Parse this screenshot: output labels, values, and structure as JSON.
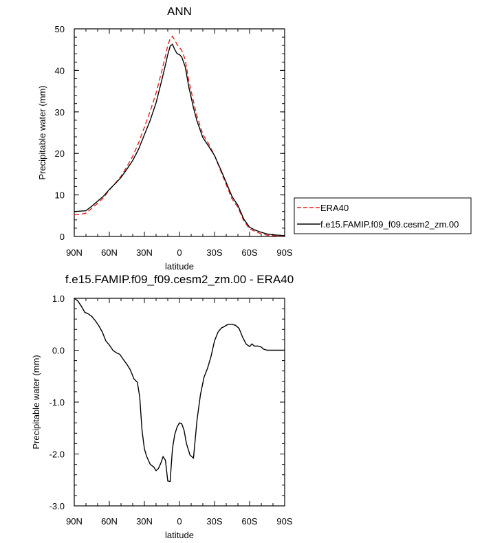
{
  "chart_data": [
    {
      "type": "line",
      "title": "ANN",
      "xlabel": "latitude",
      "ylabel": "Precipitable water (mm)",
      "x_direction": "north-to-south",
      "xlim": [
        90,
        -90
      ],
      "ylim": [
        0,
        50
      ],
      "xticks": [
        {
          "value": 90,
          "label": "90N"
        },
        {
          "value": 60,
          "label": "60N"
        },
        {
          "value": 30,
          "label": "30N"
        },
        {
          "value": 0,
          "label": "0"
        },
        {
          "value": -30,
          "label": "30S"
        },
        {
          "value": -60,
          "label": "60S"
        },
        {
          "value": -90,
          "label": "90S"
        }
      ],
      "yticks": [
        {
          "value": 0,
          "label": "0"
        },
        {
          "value": 10,
          "label": "10"
        },
        {
          "value": 20,
          "label": "20"
        },
        {
          "value": 30,
          "label": "30"
        },
        {
          "value": 40,
          "label": "40"
        },
        {
          "value": 50,
          "label": "50"
        }
      ],
      "grid": false,
      "legend_position": "right",
      "series": [
        {
          "name": "ERA40",
          "color": "#e8201a",
          "dash": "dashed",
          "x": [
            90,
            85,
            80,
            75,
            70,
            65,
            60,
            55,
            50,
            45,
            40,
            35,
            30,
            25,
            20,
            15,
            12,
            10,
            8,
            6,
            4,
            2,
            0,
            -2,
            -5,
            -8,
            -12,
            -15,
            -20,
            -25,
            -30,
            -35,
            -40,
            -45,
            -50,
            -55,
            -60,
            -65,
            -70,
            -75,
            -80,
            -85,
            -90
          ],
          "y": [
            5.2,
            5.3,
            5.6,
            6.8,
            8.0,
            9.3,
            11.2,
            12.8,
            14.5,
            16.8,
            19.3,
            22.5,
            26.3,
            30.2,
            34.5,
            40.0,
            43.5,
            46.0,
            47.6,
            48.2,
            47.3,
            46.2,
            45.5,
            44.8,
            42.5,
            37.5,
            32.5,
            29.0,
            24.6,
            22.3,
            19.5,
            16.0,
            12.5,
            9.0,
            7.0,
            3.8,
            1.8,
            1.2,
            0.6,
            0.3,
            0.2,
            0.1,
            0.1
          ]
        },
        {
          "name": "f.e15.FAMIP.f09_f09.cesm2_zm.00",
          "color": "#000000",
          "dash": "solid",
          "x": [
            90,
            85,
            80,
            75,
            70,
            65,
            60,
            55,
            50,
            45,
            40,
            35,
            30,
            25,
            20,
            15,
            12,
            10,
            8,
            6,
            4,
            2,
            0,
            -2,
            -5,
            -8,
            -12,
            -15,
            -20,
            -25,
            -30,
            -35,
            -40,
            -45,
            -50,
            -55,
            -60,
            -65,
            -70,
            -75,
            -80,
            -85,
            -90
          ],
          "y": [
            6.0,
            6.1,
            6.2,
            7.3,
            8.5,
            9.7,
            11.3,
            12.7,
            14.2,
            16.2,
            18.3,
            21.0,
            24.5,
            28.0,
            32.2,
            37.8,
            41.3,
            43.8,
            45.8,
            46.3,
            45.0,
            44.0,
            43.8,
            43.2,
            40.8,
            36.0,
            31.0,
            27.8,
            23.8,
            21.7,
            19.5,
            16.3,
            13.0,
            9.6,
            7.5,
            4.2,
            2.2,
            1.5,
            1.0,
            0.6,
            0.4,
            0.3,
            0.2
          ]
        }
      ]
    },
    {
      "type": "line",
      "title": "f.e15.FAMIP.f09_f09.cesm2_zm.00 - ERA40",
      "xlabel": "latitude",
      "ylabel": "Precipitable water (mm)",
      "x_direction": "north-to-south",
      "xlim": [
        90,
        -90
      ],
      "ylim": [
        -3.0,
        1.0
      ],
      "xticks": [
        {
          "value": 90,
          "label": "90N"
        },
        {
          "value": 60,
          "label": "60N"
        },
        {
          "value": 30,
          "label": "30N"
        },
        {
          "value": 0,
          "label": "0"
        },
        {
          "value": -30,
          "label": "30S"
        },
        {
          "value": -60,
          "label": "60S"
        },
        {
          "value": -90,
          "label": "90S"
        }
      ],
      "yticks": [
        {
          "value": 1.0,
          "label": "1.0"
        },
        {
          "value": 0.0,
          "label": "0.0"
        },
        {
          "value": -1.0,
          "label": "-1.0"
        },
        {
          "value": -2.0,
          "label": "-2.0"
        },
        {
          "value": -3.0,
          "label": "-3.0"
        }
      ],
      "grid": false,
      "series": [
        {
          "color": "#000000",
          "dash": "solid",
          "x": [
            90,
            87,
            84,
            81,
            78,
            75,
            72,
            69,
            66,
            63,
            60,
            57,
            54,
            51,
            48,
            45,
            42,
            39,
            36,
            34,
            32,
            30,
            28,
            25,
            22,
            20,
            18,
            16,
            14,
            12,
            10,
            8,
            6,
            4,
            2,
            0,
            -2,
            -4,
            -6,
            -9,
            -12,
            -15,
            -18,
            -21,
            -24,
            -27,
            -30,
            -33,
            -36,
            -38,
            -40,
            -42,
            -45,
            -48,
            -51,
            -54,
            -57,
            -60,
            -62,
            -64,
            -67,
            -70,
            -72,
            -75,
            -78,
            -81,
            -84,
            -87,
            -90
          ],
          "y": [
            1.0,
            0.95,
            0.85,
            0.73,
            0.7,
            0.65,
            0.57,
            0.47,
            0.35,
            0.18,
            0.1,
            0.0,
            -0.05,
            -0.08,
            -0.18,
            -0.27,
            -0.38,
            -0.55,
            -0.62,
            -0.9,
            -1.55,
            -1.9,
            -2.05,
            -2.2,
            -2.25,
            -2.32,
            -2.28,
            -2.18,
            -2.05,
            -2.12,
            -2.52,
            -2.53,
            -1.9,
            -1.62,
            -1.48,
            -1.4,
            -1.42,
            -1.55,
            -1.8,
            -2.02,
            -2.08,
            -1.35,
            -0.85,
            -0.52,
            -0.35,
            -0.12,
            0.18,
            0.35,
            0.43,
            0.45,
            0.48,
            0.5,
            0.5,
            0.48,
            0.42,
            0.25,
            0.12,
            0.07,
            0.12,
            0.08,
            0.08,
            0.06,
            0.02,
            0.0,
            0.0,
            0.0,
            0.0,
            0.0,
            0.0
          ]
        }
      ]
    }
  ]
}
